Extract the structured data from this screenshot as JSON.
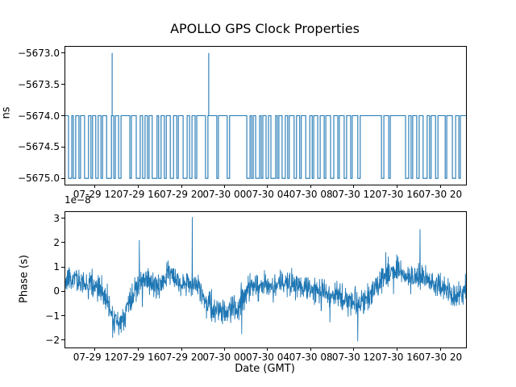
{
  "figure": {
    "title": "APOLLO GPS Clock Properties",
    "xlabel": "Date (GMT)",
    "background": "#ffffff",
    "line_color": "#1f77b4",
    "spine_color": "#000000"
  },
  "chart_data": [
    {
      "type": "line",
      "subplot": "top",
      "ylabel": "ns",
      "ylim": [
        -5675.1,
        -5672.9
      ],
      "yticks": {
        "values": [
          -5673.0,
          -5673.5,
          -5674.0,
          -5674.5,
          -5675.0
        ],
        "labels": [
          "−5673.0",
          "−5673.5",
          "−5674.0",
          "−5674.5",
          "−5675.0"
        ]
      },
      "xticks": {
        "fracs": [
          0.074,
          0.182,
          0.29,
          0.397,
          0.505,
          0.613,
          0.72,
          0.828,
          0.936
        ],
        "labels": [
          "07-29 12",
          "07-29 16",
          "07-29 20",
          "07-30 00",
          "07-30 04",
          "07-30 08",
          "07-30 12",
          "07-30 16",
          "07-30 20"
        ]
      },
      "baseline_value": -5674.0,
      "low_value": -5675.0,
      "spike_value": -5673.0,
      "low_intervals_frac": [
        [
          0.008,
          0.016
        ],
        [
          0.02,
          0.026
        ],
        [
          0.034,
          0.038
        ],
        [
          0.048,
          0.058
        ],
        [
          0.064,
          0.068
        ],
        [
          0.076,
          0.082
        ],
        [
          0.089,
          0.093
        ],
        [
          0.103,
          0.115
        ],
        [
          0.121,
          0.125
        ],
        [
          0.133,
          0.139
        ],
        [
          0.161,
          0.165
        ],
        [
          0.177,
          0.187
        ],
        [
          0.193,
          0.199
        ],
        [
          0.205,
          0.209
        ],
        [
          0.217,
          0.229
        ],
        [
          0.233,
          0.239
        ],
        [
          0.247,
          0.252
        ],
        [
          0.262,
          0.27
        ],
        [
          0.278,
          0.282
        ],
        [
          0.294,
          0.304
        ],
        [
          0.31,
          0.316
        ],
        [
          0.324,
          0.328
        ],
        [
          0.35,
          0.356
        ],
        [
          0.378,
          0.382
        ],
        [
          0.404,
          0.41
        ],
        [
          0.453,
          0.461
        ],
        [
          0.465,
          0.469
        ],
        [
          0.475,
          0.485
        ],
        [
          0.489,
          0.493
        ],
        [
          0.501,
          0.507
        ],
        [
          0.513,
          0.525
        ],
        [
          0.529,
          0.533
        ],
        [
          0.541,
          0.549
        ],
        [
          0.555,
          0.559
        ],
        [
          0.571,
          0.577
        ],
        [
          0.585,
          0.589
        ],
        [
          0.6,
          0.61
        ],
        [
          0.616,
          0.62
        ],
        [
          0.63,
          0.636
        ],
        [
          0.646,
          0.65
        ],
        [
          0.662,
          0.67
        ],
        [
          0.68,
          0.684
        ],
        [
          0.696,
          0.702
        ],
        [
          0.712,
          0.716
        ],
        [
          0.73,
          0.736
        ],
        [
          0.789,
          0.795
        ],
        [
          0.807,
          0.811
        ],
        [
          0.849,
          0.857
        ],
        [
          0.863,
          0.867
        ],
        [
          0.877,
          0.883
        ],
        [
          0.893,
          0.903
        ],
        [
          0.909,
          0.913
        ],
        [
          0.924,
          0.93
        ],
        [
          0.948,
          0.952
        ],
        [
          0.966,
          0.974
        ],
        [
          0.982,
          0.986
        ]
      ],
      "spikes_frac": [
        0.117,
        0.358
      ]
    },
    {
      "type": "line",
      "subplot": "bottom",
      "ylabel": "Phase (s)",
      "offset_text": "1e−8",
      "ylim": [
        -2.3,
        3.25
      ],
      "yticks": {
        "values": [
          3,
          2,
          1,
          0,
          -1,
          -2
        ],
        "labels": [
          "3",
          "2",
          "1",
          "0",
          "−1",
          "−2"
        ]
      },
      "xticks": {
        "fracs": [
          0.074,
          0.182,
          0.29,
          0.397,
          0.505,
          0.613,
          0.72,
          0.828,
          0.936
        ],
        "labels": [
          "07-29 12",
          "07-29 16",
          "07-29 20",
          "07-30 00",
          "07-30 04",
          "07-30 08",
          "07-30 12",
          "07-30 16",
          "07-30 20"
        ]
      },
      "trend": {
        "x": [
          0.0,
          0.02,
          0.05,
          0.08,
          0.105,
          0.125,
          0.145,
          0.17,
          0.2,
          0.23,
          0.26,
          0.29,
          0.315,
          0.335,
          0.355,
          0.375,
          0.4,
          0.43,
          0.46,
          0.5,
          0.53,
          0.56,
          0.6,
          0.63,
          0.66,
          0.69,
          0.715,
          0.74,
          0.76,
          0.78,
          0.8,
          0.83,
          0.86,
          0.89,
          0.92,
          0.95,
          0.975,
          1.0
        ],
        "y": [
          0.45,
          0.55,
          0.3,
          0.25,
          -0.4,
          -1.25,
          -1.1,
          -0.1,
          0.55,
          0.15,
          0.85,
          0.3,
          0.4,
          0.1,
          -0.55,
          -0.85,
          -0.75,
          -0.6,
          0.15,
          0.3,
          0.25,
          0.35,
          0.15,
          0.05,
          -0.1,
          -0.35,
          -0.5,
          -0.45,
          -0.2,
          0.3,
          0.75,
          0.85,
          0.55,
          0.6,
          0.3,
          0.1,
          -0.15,
          0.1
        ]
      },
      "outliers": [
        {
          "x": 0.118,
          "y": -1.9
        },
        {
          "x": 0.185,
          "y": 2.1
        },
        {
          "x": 0.317,
          "y": 3.05
        },
        {
          "x": 0.44,
          "y": -1.75
        },
        {
          "x": 0.73,
          "y": -2.05
        },
        {
          "x": 0.8,
          "y": 1.6
        },
        {
          "x": 0.885,
          "y": 2.55
        }
      ],
      "noise_amplitude": 0.45,
      "n_points": 1500,
      "seed": 20
    }
  ]
}
